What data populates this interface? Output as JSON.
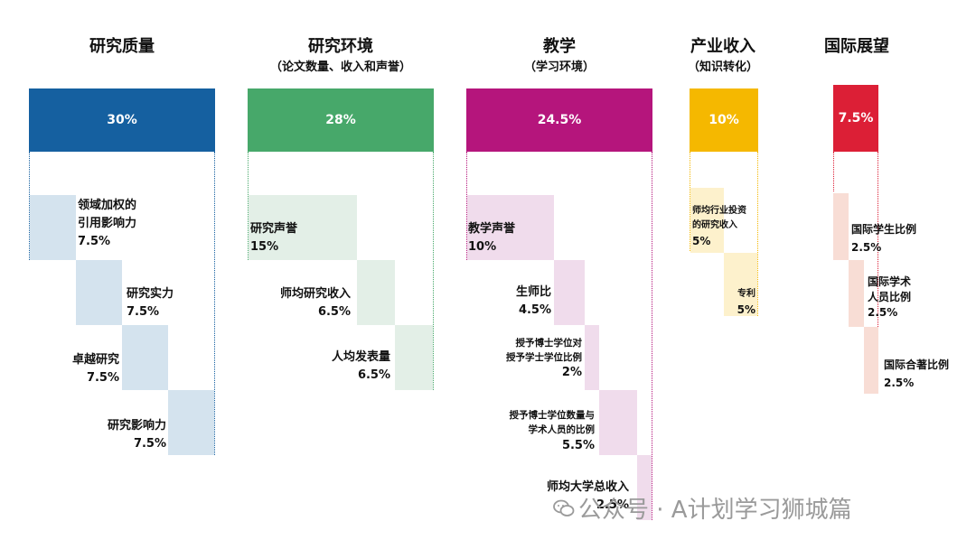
{
  "columns": [
    {
      "title": "研究质量",
      "subtitle": "",
      "weight": "30%",
      "color": "#1560a0",
      "fill": "#d4e3ee",
      "items": [
        {
          "lines": [
            "领域加权的",
            "引用影响力"
          ],
          "value": "7.5%"
        },
        {
          "lines": [
            "研究实力"
          ],
          "value": "7.5%"
        },
        {
          "lines": [
            "卓越研究"
          ],
          "value": "7.5%"
        },
        {
          "lines": [
            "研究影响力"
          ],
          "value": "7.5%"
        }
      ]
    },
    {
      "title": "研究环境",
      "subtitle": "（论文数量、收入和声誉）",
      "weight": "28%",
      "color": "#47a86a",
      "fill": "#e3efe7",
      "items": [
        {
          "lines": [
            "研究声誉"
          ],
          "value": "15%"
        },
        {
          "lines": [
            "师均研究收入"
          ],
          "value": "6.5%"
        },
        {
          "lines": [
            "人均发表量"
          ],
          "value": "6.5%"
        }
      ]
    },
    {
      "title": "教学",
      "subtitle": "（学习环境）",
      "weight": "24.5%",
      "color": "#b5157c",
      "fill": "#f0dcec",
      "items": [
        {
          "lines": [
            "教学声誉"
          ],
          "value": "10%"
        },
        {
          "lines": [
            "生师比"
          ],
          "value": "4.5%"
        },
        {
          "lines": [
            "授予博士学位对",
            "授予学士学位比例"
          ],
          "value": "2%"
        },
        {
          "lines": [
            "授予博士学位数量与",
            "学术人员的比例"
          ],
          "value": "5.5%"
        },
        {
          "lines": [
            "师均大学总收入"
          ],
          "value": "2.5%"
        }
      ]
    },
    {
      "title": "产业收入",
      "subtitle": "（知识转化）",
      "weight": "10%",
      "color": "#f5b800",
      "fill": "#fdf1cc",
      "items": [
        {
          "lines": [
            "师均行业投资",
            "的研究收入"
          ],
          "value": "5%"
        },
        {
          "lines": [
            "专利"
          ],
          "value": "5%"
        }
      ]
    },
    {
      "title": "国际展望",
      "subtitle": "",
      "weight": "7.5%",
      "color": "#dc1f36",
      "fill": "#f8ddd5",
      "items": [
        {
          "lines": [
            "国际学生比例"
          ],
          "value": "2.5%"
        },
        {
          "lines": [
            "国际学术",
            "人员比例"
          ],
          "value": "2.5%"
        },
        {
          "lines": [
            "国际合著比例"
          ],
          "value": "2.5%"
        }
      ]
    }
  ],
  "watermark": {
    "text": "公众号 · A计划学习狮城篇",
    "icon": "wechat-icon"
  }
}
